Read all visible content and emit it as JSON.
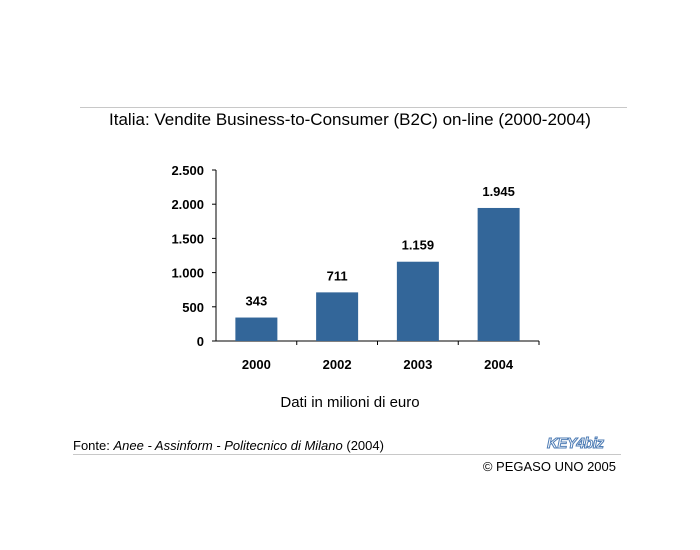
{
  "title": "Italia: Vendite Business-to-Consumer (B2C) on-line (2000-2004)",
  "caption": "Dati in milioni di euro",
  "source": {
    "prefix": "Fonte: ",
    "name": "Anee - Assinform - Politecnico di Milano",
    "year": " (2004)"
  },
  "copyright": "© PEGASO UNO 2005",
  "logo": {
    "text": "KEY4biz"
  },
  "colors": {
    "bar": "#336699",
    "logo": "#4f7db5"
  },
  "chart_data": {
    "type": "bar",
    "categories": [
      "2000",
      "2002",
      "2003",
      "2004"
    ],
    "values": [
      343,
      711,
      1159,
      1945
    ],
    "value_labels": [
      "343",
      "711",
      "1.159",
      "1.945"
    ],
    "yticks": [
      0,
      500,
      1000,
      1500,
      2000,
      2500
    ],
    "ytick_labels": [
      "0",
      "500",
      "1.000",
      "1.500",
      "2.000",
      "2.500"
    ],
    "ylim": [
      0,
      2500
    ],
    "grid": false,
    "legend": "none"
  }
}
